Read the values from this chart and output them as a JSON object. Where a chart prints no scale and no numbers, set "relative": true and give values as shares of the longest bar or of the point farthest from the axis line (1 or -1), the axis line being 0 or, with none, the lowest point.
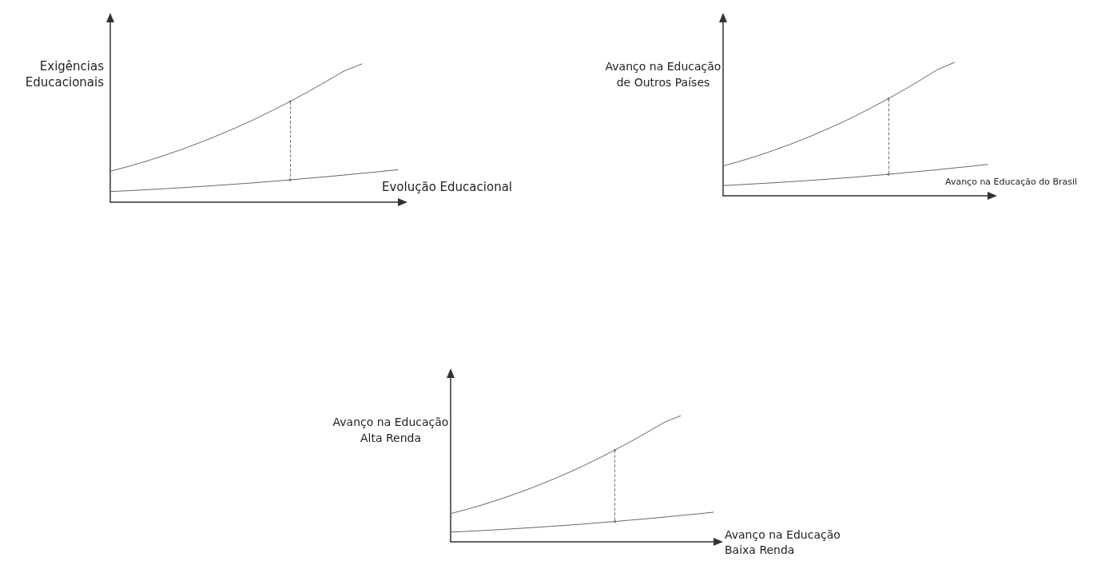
{
  "chart_data": [
    {
      "type": "line",
      "relative": true,
      "ylabel": "Exigências\nEducacionais",
      "xlabel": "Evolução Educacional",
      "categories": [
        null,
        null,
        null,
        null,
        null,
        null,
        null,
        null,
        null,
        null,
        null,
        null,
        null,
        null,
        null,
        null,
        null
      ],
      "marker": "none",
      "grid": false,
      "series": [
        {
          "color": "#666666",
          "values": [
            0.224,
            0.258,
            0.296,
            0.338,
            0.383,
            0.431,
            0.484,
            0.539,
            0.598,
            0.662,
            0.728,
            0.798,
            0.872,
            0.948,
            1.0,
            null,
            null
          ]
        },
        {
          "color": "#666666",
          "values": [
            0.077,
            0.083,
            0.09,
            0.097,
            0.105,
            0.113,
            0.122,
            0.131,
            0.14,
            0.151,
            0.161,
            0.173,
            0.184,
            0.196,
            0.209,
            0.221,
            0.235
          ]
        }
      ]
    },
    {
      "type": "line",
      "relative": true,
      "ylabel": "Avanço na Educação\nde Outros Países",
      "xlabel": "Avanço na Educação do Brasil",
      "categories": [
        null,
        null,
        null,
        null,
        null,
        null,
        null,
        null,
        null,
        null,
        null,
        null,
        null,
        null,
        null,
        null,
        null
      ],
      "marker": "none",
      "grid": false,
      "series": [
        {
          "color": "#666666",
          "values": [
            0.224,
            0.258,
            0.296,
            0.338,
            0.383,
            0.431,
            0.484,
            0.539,
            0.598,
            0.662,
            0.728,
            0.798,
            0.872,
            0.948,
            1.0,
            null,
            null
          ]
        },
        {
          "color": "#666666",
          "values": [
            0.077,
            0.083,
            0.09,
            0.097,
            0.105,
            0.113,
            0.122,
            0.131,
            0.14,
            0.151,
            0.161,
            0.173,
            0.184,
            0.196,
            0.209,
            0.221,
            0.235
          ]
        }
      ]
    },
    {
      "type": "line",
      "relative": true,
      "ylabel": "Avanço na Educação\nAlta Renda",
      "xlabel": "Avanço na Educação\nBaixa Renda",
      "categories": [
        null,
        null,
        null,
        null,
        null,
        null,
        null,
        null,
        null,
        null,
        null,
        null,
        null,
        null,
        null,
        null,
        null
      ],
      "marker": "none",
      "grid": false,
      "series": [
        {
          "color": "#666666",
          "values": [
            0.224,
            0.258,
            0.296,
            0.338,
            0.383,
            0.431,
            0.484,
            0.539,
            0.598,
            0.662,
            0.728,
            0.798,
            0.872,
            0.948,
            1.0,
            null,
            null
          ]
        },
        {
          "color": "#666666",
          "values": [
            0.077,
            0.083,
            0.09,
            0.097,
            0.105,
            0.113,
            0.122,
            0.131,
            0.14,
            0.151,
            0.161,
            0.173,
            0.184,
            0.196,
            0.209,
            0.221,
            0.235
          ]
        }
      ]
    }
  ]
}
